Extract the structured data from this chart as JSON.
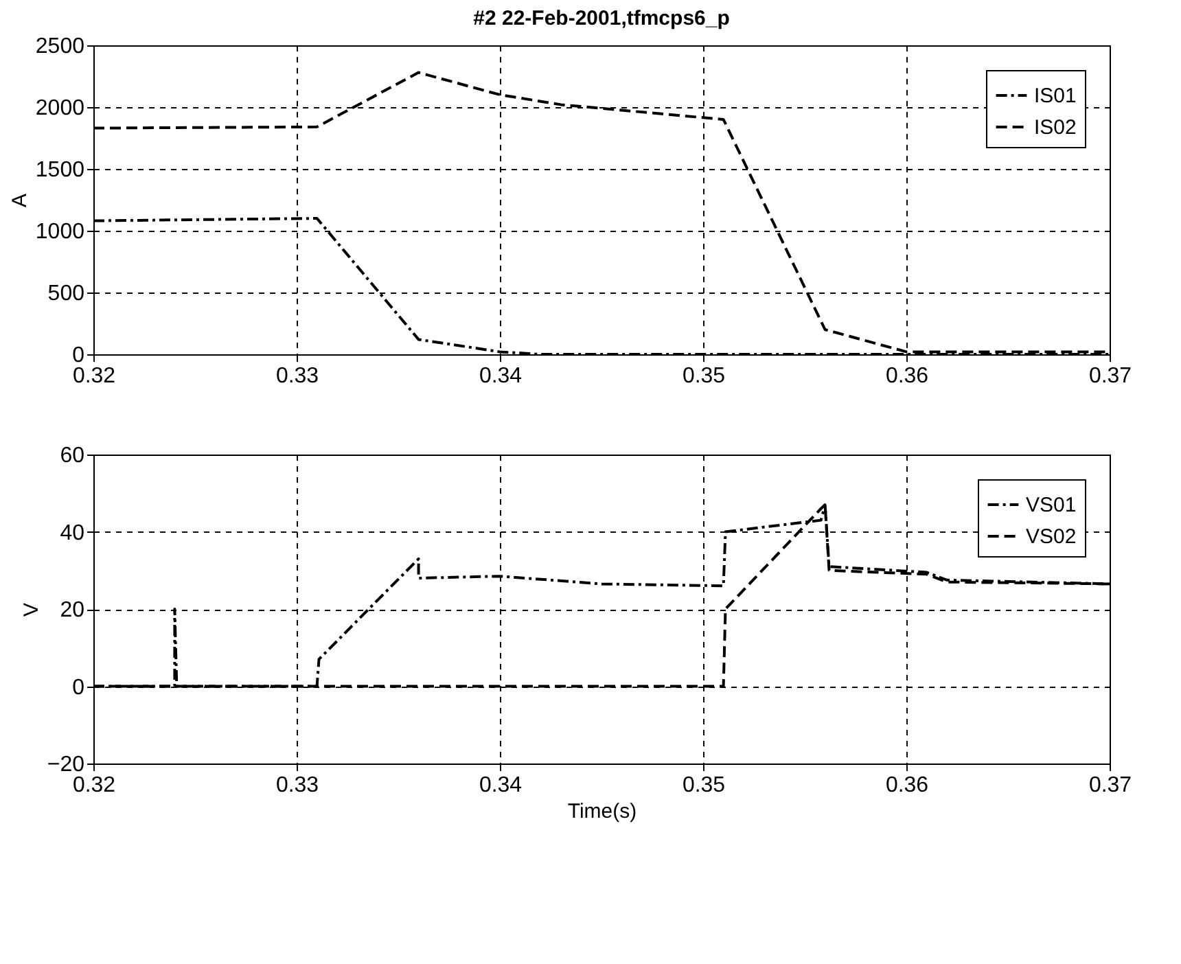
{
  "chart_data": [
    {
      "type": "line",
      "title": "#2  22-Feb-2001,tfmcps6_p",
      "ylabel": "A",
      "xlim": [
        0.32,
        0.37
      ],
      "xticks": [
        0.32,
        0.33,
        0.34,
        0.35,
        0.36,
        0.37
      ],
      "ylim": [
        0,
        2500
      ],
      "yticks": [
        0,
        500,
        1000,
        1500,
        2000,
        2500
      ],
      "grid": true,
      "legend": "top right",
      "marker": "none",
      "series": [
        {
          "name": "IS01",
          "color": "#000000",
          "line_style": "dashdot",
          "x": [
            0.32,
            0.331,
            0.336,
            0.34,
            0.342,
            0.37
          ],
          "values": [
            1080,
            1100,
            120,
            20,
            0,
            0
          ]
        },
        {
          "name": "IS02",
          "color": "#000000",
          "line_style": "dashed",
          "x": [
            0.32,
            0.331,
            0.336,
            0.34,
            0.343,
            0.351,
            0.356,
            0.36,
            0.37
          ],
          "values": [
            1830,
            1840,
            2280,
            2100,
            2020,
            1900,
            200,
            20,
            20
          ]
        }
      ]
    },
    {
      "type": "line",
      "xlabel": "Time(s)",
      "ylabel": "V",
      "xlim": [
        0.32,
        0.37
      ],
      "xticks": [
        0.32,
        0.33,
        0.34,
        0.35,
        0.36,
        0.37
      ],
      "ylim": [
        -20,
        60
      ],
      "yticks": [
        -20,
        0,
        20,
        40,
        60
      ],
      "grid": true,
      "legend": "top right",
      "marker": "none",
      "series": [
        {
          "name": "VS01",
          "color": "#000000",
          "line_style": "dashdot",
          "x": [
            0.32,
            0.324,
            0.324,
            0.3241,
            0.331,
            0.3311,
            0.336,
            0.336,
            0.34,
            0.345,
            0.351,
            0.3511,
            0.3558,
            0.356,
            0.3562,
            0.361,
            0.362,
            0.37
          ],
          "values": [
            0,
            0,
            20,
            0,
            0,
            7,
            33,
            28,
            28.5,
            26.5,
            26,
            40,
            43,
            47,
            31,
            29.5,
            27.5,
            26.5
          ]
        },
        {
          "name": "VS02",
          "color": "#000000",
          "line_style": "dashed",
          "x": [
            0.32,
            0.351,
            0.3511,
            0.3558,
            0.356,
            0.3562,
            0.361,
            0.362,
            0.37
          ],
          "values": [
            0,
            0,
            20,
            46,
            47,
            30,
            29,
            27,
            26.5
          ]
        }
      ]
    }
  ]
}
